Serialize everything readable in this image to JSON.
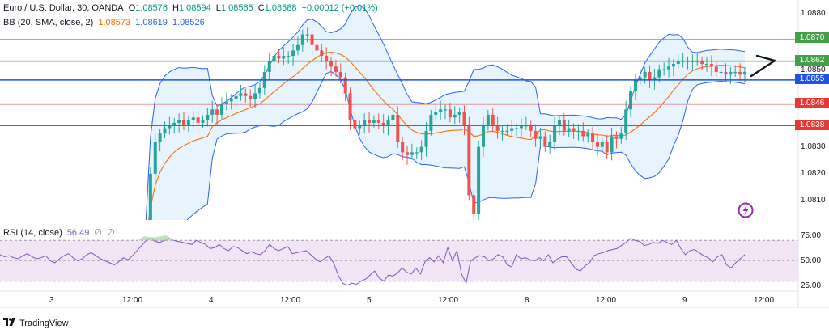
{
  "header": {
    "symbol": "Euro / U.S. Dollar, 30, OANDA",
    "o_label": "O",
    "o": "1.08576",
    "h_label": "H",
    "h": "1.08594",
    "l_label": "L",
    "l": "1.08565",
    "c_label": "C",
    "c": "1.08588",
    "change": "+0.00012 (+0.01%)",
    "bb_label": "BB (20, SMA, close, 2)",
    "bb_basis": "1.08573",
    "bb_upper": "1.08619",
    "bb_lower": "1.08526"
  },
  "rsi_header": {
    "label": "RSI (14, close)",
    "value": "56.49",
    "d1": "∅",
    "d2": "∅"
  },
  "footer": {
    "brand": "TradingView"
  },
  "colors": {
    "up": "#26a69a",
    "down": "#ef5350",
    "bb_line": "#2962ff",
    "bb_fill": "#e3f2fd",
    "basis": "#ff6d00",
    "green_line": "#43a047",
    "red_line": "#e53935",
    "blue_line": "#1e53e5",
    "rsi_line": "#7e57c2",
    "rsi_band": "#f3e5f5"
  },
  "icons": {
    "arrow": "arrow-right-icon",
    "lightning": "lightning-icon",
    "logo": "tradingview-logo-icon"
  },
  "chart_data": [
    {
      "type": "candlestick",
      "title": "Euro / U.S. Dollar, 30, OANDA",
      "ylim": [
        1.0804,
        1.0883
      ],
      "y_ticks": [
        "1.0880",
        "1.0850",
        "1.0830",
        "1.0820",
        "1.0810"
      ],
      "x_ticks": [
        "3",
        "12:00",
        "4",
        "12:00",
        "5",
        "12:00",
        "8",
        "12:00",
        "9",
        "12:00"
      ],
      "horizontal_levels": [
        {
          "label": "1.0870",
          "value": 1.087,
          "color": "#43a047"
        },
        {
          "label": "1.0862",
          "value": 1.0862,
          "color": "#43a047"
        },
        {
          "label": "1.0855",
          "value": 1.0855,
          "color": "#1e53e5"
        },
        {
          "label": "1.0846",
          "value": 1.0846,
          "color": "#e53935"
        },
        {
          "label": "1.0838",
          "value": 1.0838,
          "color": "#e53935"
        }
      ],
      "close_series": [
        1.0795,
        1.082,
        1.0832,
        1.0835,
        1.0837,
        1.0838,
        1.0839,
        1.084,
        1.0838,
        1.084,
        1.0841,
        1.0839,
        1.084,
        1.0842,
        1.0844,
        1.0842,
        1.0846,
        1.0847,
        1.0848,
        1.0849,
        1.085,
        1.0849,
        1.0848,
        1.085,
        1.0852,
        1.0858,
        1.0862,
        1.0864,
        1.0863,
        1.0864,
        1.0864,
        1.0866,
        1.0868,
        1.0872,
        1.0872,
        1.0868,
        1.0866,
        1.0864,
        1.0862,
        1.086,
        1.0858,
        1.0856,
        1.085,
        1.084,
        1.0837,
        1.0838,
        1.084,
        1.0839,
        1.084,
        1.0839,
        1.0838,
        1.084,
        1.0842,
        1.0832,
        1.0828,
        1.0827,
        1.0828,
        1.0828,
        1.083,
        1.0836,
        1.0842,
        1.0843,
        1.0844,
        1.0844,
        1.0841,
        1.0842,
        1.0843,
        1.0838,
        1.0812,
        1.0805,
        1.083,
        1.0838,
        1.0842,
        1.0838,
        1.0836,
        1.0836,
        1.0836,
        1.0837,
        1.0837,
        1.0838,
        1.0838,
        1.0836,
        1.0833,
        1.0834,
        1.083,
        1.0832,
        1.0838,
        1.084,
        1.0836,
        1.0837,
        1.0836,
        1.0836,
        1.0834,
        1.0835,
        1.0832,
        1.083,
        1.0832,
        1.0828,
        1.0834,
        1.0833,
        1.0835,
        1.0844,
        1.0851,
        1.0855,
        1.0856,
        1.0858,
        1.0855,
        1.0856,
        1.0859,
        1.0859,
        1.086,
        1.0861,
        1.0862,
        1.0862,
        1.0862,
        1.0862,
        1.0862,
        1.0861,
        1.0861,
        1.086,
        1.0858,
        1.0858,
        1.0857,
        1.0858,
        1.0858,
        1.0857,
        1.0858
      ]
    },
    {
      "type": "line",
      "title": "RSI (14, close)",
      "ylim": [
        25,
        80
      ],
      "y_ticks": [
        "75.00",
        "50.00",
        "25.00"
      ],
      "band": [
        30,
        70
      ],
      "values": [
        56,
        54,
        55,
        53,
        52,
        55,
        57,
        54,
        52,
        53,
        55,
        50,
        48,
        52,
        55,
        57,
        53,
        50,
        52,
        56,
        58,
        55,
        52,
        50,
        48,
        46,
        49,
        53,
        51,
        55,
        60,
        65,
        70,
        72,
        69,
        68,
        70,
        72,
        70,
        69,
        68,
        67,
        66,
        70,
        68,
        66,
        62,
        63,
        66,
        62,
        60,
        64,
        63,
        60,
        57,
        59,
        57,
        56,
        60,
        66,
        62,
        60,
        62,
        64,
        57,
        58,
        59,
        60,
        56,
        52,
        49,
        52,
        55,
        48,
        36,
        28,
        26,
        28,
        27,
        30,
        32,
        36,
        40,
        33,
        30,
        36,
        35,
        38,
        43,
        39,
        37,
        43,
        37,
        49,
        53,
        49,
        55,
        48,
        63,
        50,
        60,
        37,
        28,
        50,
        53,
        55,
        54,
        50,
        52,
        56,
        54,
        46,
        44,
        56,
        52,
        53,
        51,
        50,
        53,
        50,
        56,
        48,
        52,
        54,
        54,
        48,
        42,
        40,
        45,
        48,
        55,
        57,
        58,
        60,
        61,
        62,
        65,
        68,
        72,
        70,
        69,
        65,
        66,
        68,
        67,
        70,
        68,
        66,
        70,
        62,
        56,
        60,
        61,
        58,
        55,
        53,
        49,
        54,
        56,
        46,
        43,
        48,
        52,
        56
      ]
    }
  ]
}
